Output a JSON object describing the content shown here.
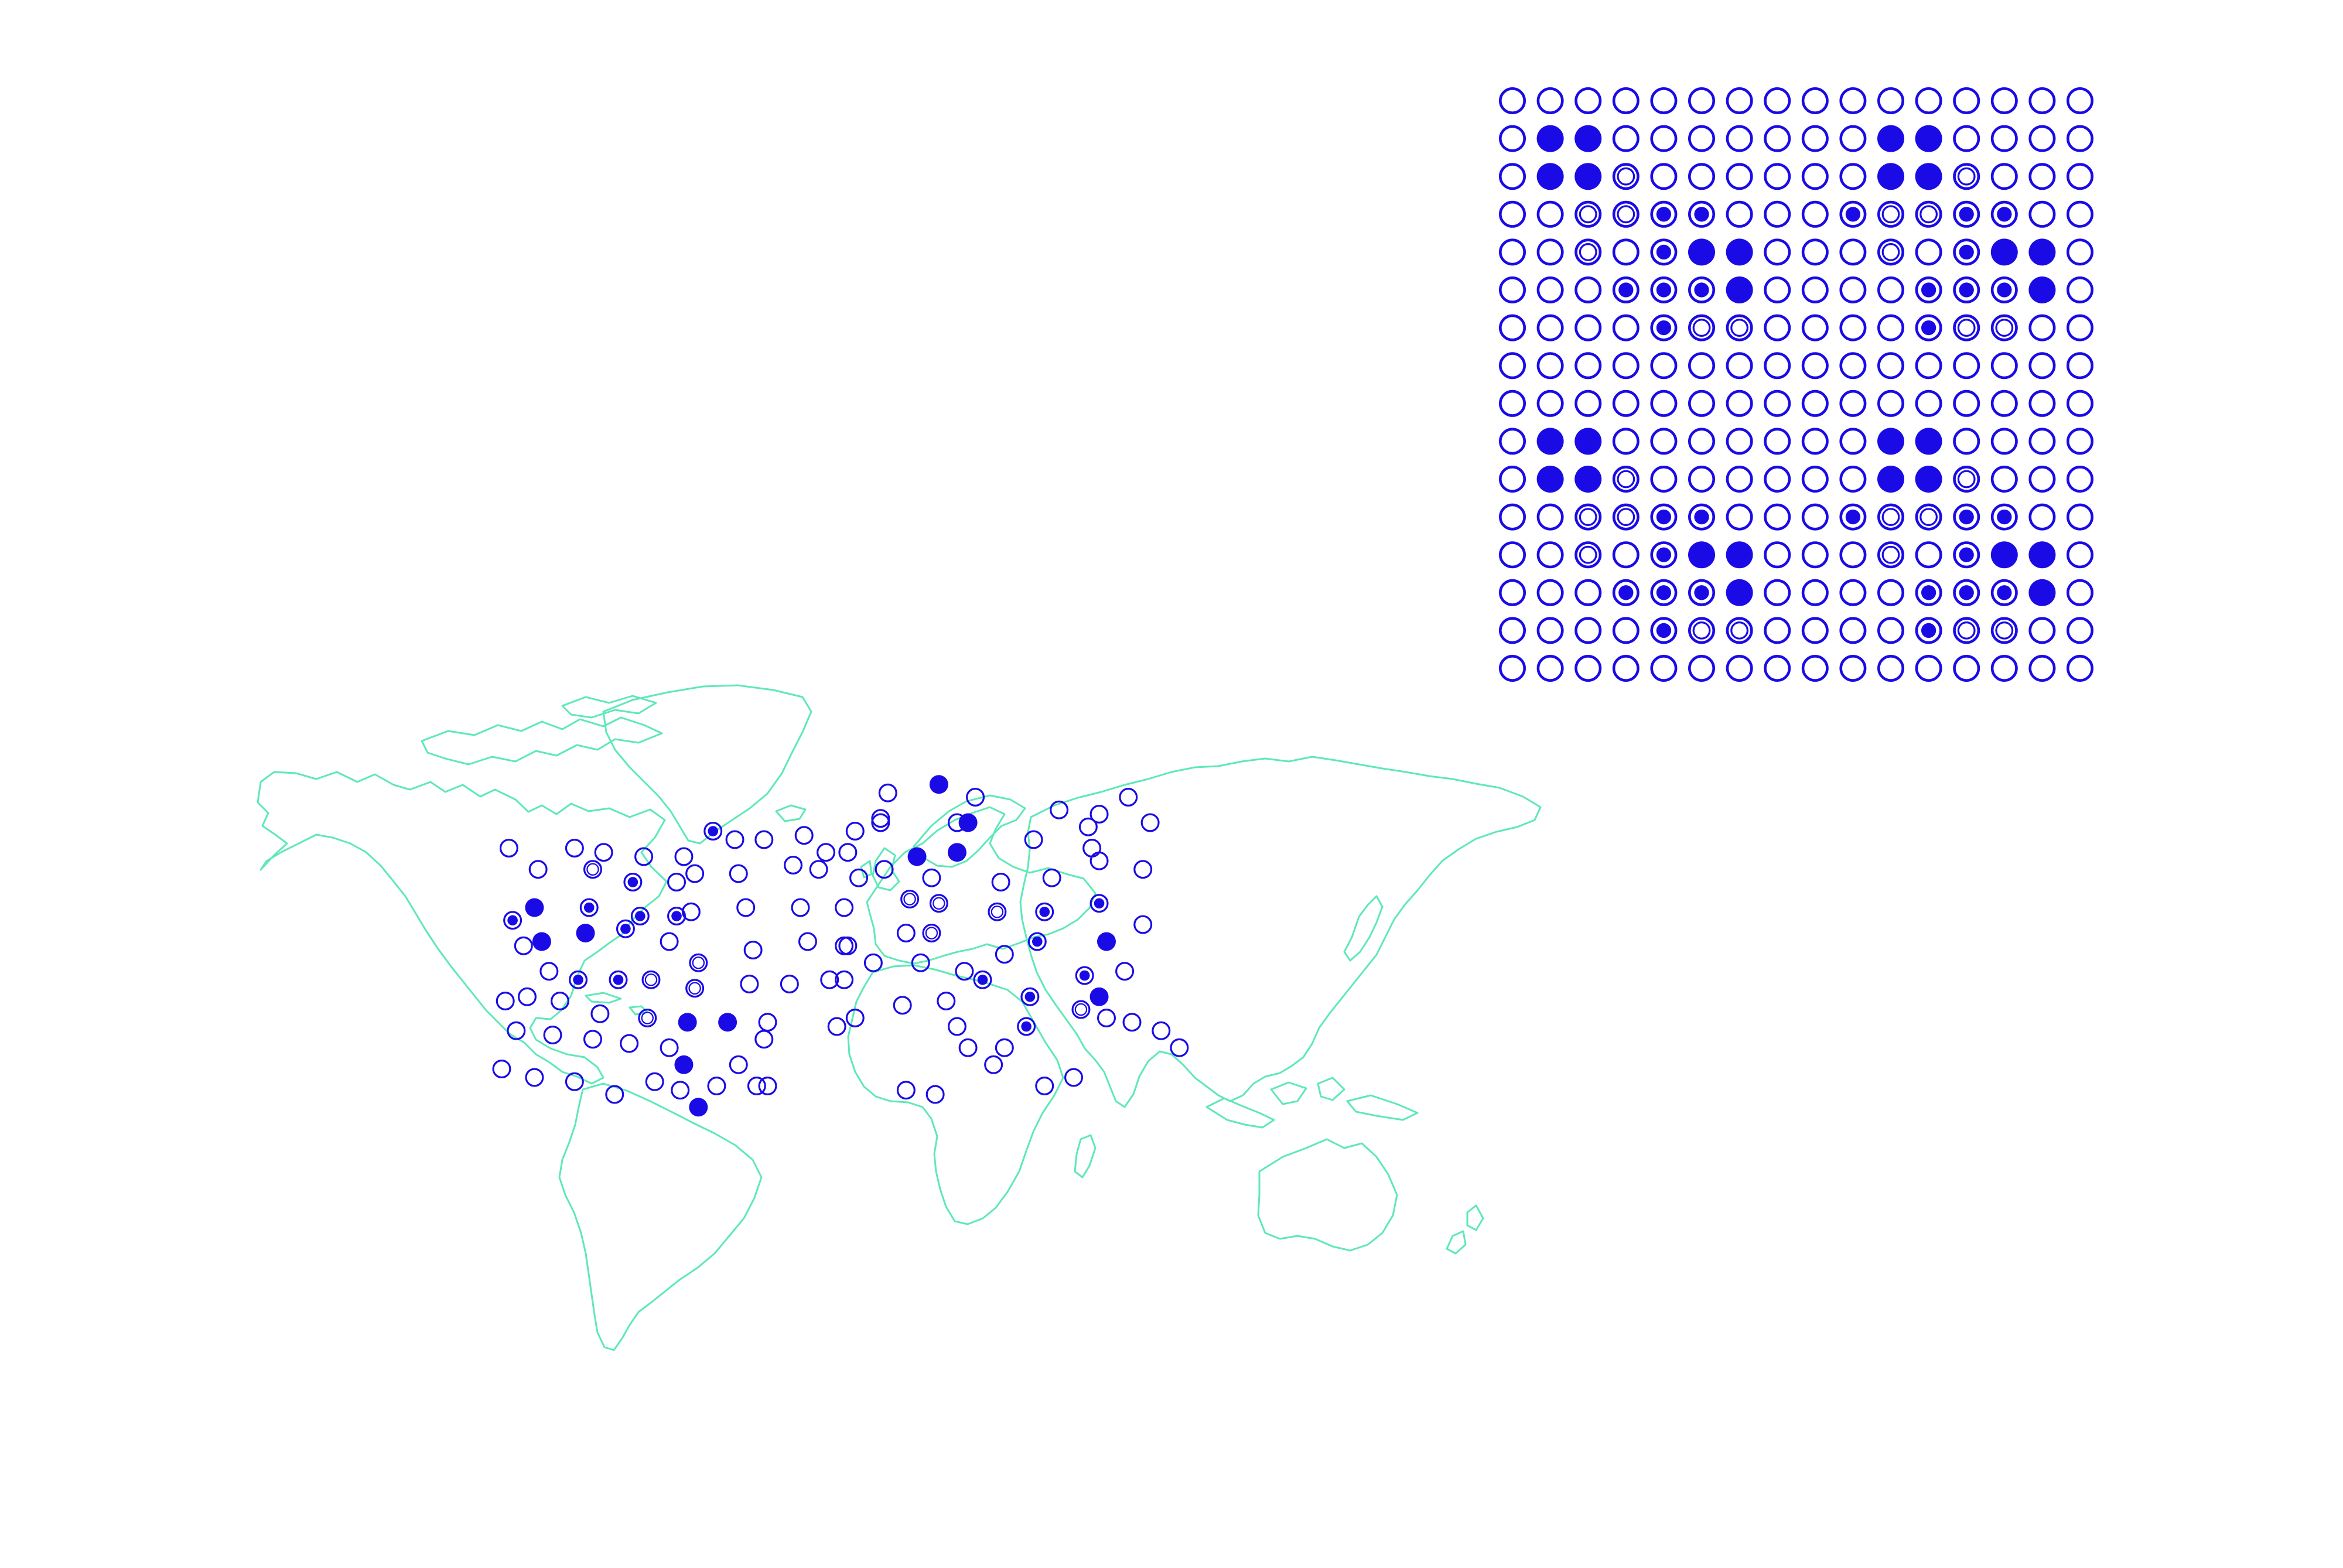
{
  "colors": {
    "background": "#ffffff",
    "marker": "#1a0be6",
    "coastline": "#5ee8b8"
  },
  "legend_grid": {
    "rows": [
      "0000000000000000",
      "0330000000330000",
      "0331000000331000",
      "0011220002112200",
      "0010233000102330",
      "0002223000022230",
      "0000211000021100",
      "0000000000000000",
      "0000000000000000",
      "0330000000330000",
      "0331000000331000",
      "0011220002112200",
      "0010233000102330",
      "0002223000022230",
      "0000211000021100",
      "0000000000000000"
    ],
    "marker_types": [
      "hollow",
      "ring-in-ring",
      "dot-in-ring",
      "filled"
    ]
  },
  "map_markers": [
    [
      "hollow",
      [
        -105,
        52
      ]
    ],
    [
      "hollow",
      [
        -97,
        47
      ]
    ],
    [
      "hollow",
      [
        -87,
        52
      ]
    ],
    [
      "hollow",
      [
        -79,
        51
      ]
    ],
    [
      "hollow",
      [
        -68,
        50
      ]
    ],
    [
      "hollow",
      [
        -57,
        50
      ]
    ],
    [
      "hollow",
      [
        -43,
        54
      ]
    ],
    [
      "ring-in-ring",
      [
        -82,
        47
      ]
    ],
    [
      "dot-in-ring",
      [
        -71,
        44
      ]
    ],
    [
      "hollow",
      [
        -59,
        44
      ]
    ],
    [
      "dot-in-ring",
      [
        -104,
        35
      ]
    ],
    [
      "filled",
      [
        -98,
        38
      ]
    ],
    [
      "dot-in-ring",
      [
        -83,
        38
      ]
    ],
    [
      "dot-in-ring",
      [
        -69,
        36
      ]
    ],
    [
      "dot-in-ring",
      [
        -59,
        36
      ]
    ],
    [
      "hollow",
      [
        -101,
        29
      ]
    ],
    [
      "filled",
      [
        -96,
        30
      ]
    ],
    [
      "filled",
      [
        -84,
        32
      ]
    ],
    [
      "dot-in-ring",
      [
        -73,
        33
      ]
    ],
    [
      "hollow",
      [
        -61,
        30
      ]
    ],
    [
      "ring-in-ring",
      [
        -53,
        25
      ]
    ],
    [
      "hollow",
      [
        -94,
        23
      ]
    ],
    [
      "dot-in-ring",
      [
        -86,
        21
      ]
    ],
    [
      "dot-in-ring",
      [
        -75,
        21
      ]
    ],
    [
      "ring-in-ring",
      [
        -66,
        21
      ]
    ],
    [
      "ring-in-ring",
      [
        -54,
        19
      ]
    ],
    [
      "hollow",
      [
        -106,
        16
      ]
    ],
    [
      "hollow",
      [
        -100,
        17
      ]
    ],
    [
      "hollow",
      [
        -91,
        16
      ]
    ],
    [
      "hollow",
      [
        -80,
        13
      ]
    ],
    [
      "ring-in-ring",
      [
        -67,
        12
      ]
    ],
    [
      "filled",
      [
        -56,
        11
      ]
    ],
    [
      "filled",
      [
        -45,
        11
      ]
    ],
    [
      "hollow",
      [
        -103,
        9
      ]
    ],
    [
      "hollow",
      [
        -93,
        8
      ]
    ],
    [
      "hollow",
      [
        -82,
        7
      ]
    ],
    [
      "hollow",
      [
        -72,
        6
      ]
    ],
    [
      "hollow",
      [
        -61,
        5
      ]
    ],
    [
      "filled",
      [
        -57,
        1
      ]
    ],
    [
      "hollow",
      [
        -35,
        7
      ]
    ],
    [
      "hollow",
      [
        -107,
        0
      ]
    ],
    [
      "hollow",
      [
        -98,
        -2
      ]
    ],
    [
      "hollow",
      [
        -87,
        -3
      ]
    ],
    [
      "hollow",
      [
        -76,
        -6
      ]
    ],
    [
      "hollow",
      [
        -65,
        -3
      ]
    ],
    [
      "hollow",
      [
        -58,
        -5
      ]
    ],
    [
      "filled",
      [
        -53,
        -9
      ]
    ],
    [
      "hollow",
      [
        -48,
        -4
      ]
    ],
    [
      "hollow",
      [
        -37,
        -4
      ]
    ],
    [
      "dot-in-ring",
      [
        -49,
        56
      ]
    ],
    [
      "hollow",
      [
        -35,
        54
      ]
    ],
    [
      "hollow",
      [
        -24,
        55
      ]
    ],
    [
      "hollow",
      [
        -10,
        56
      ]
    ],
    [
      "hollow",
      [
        -18,
        51
      ]
    ],
    [
      "hollow",
      [
        -12,
        51
      ]
    ],
    [
      "hollow",
      [
        -54,
        46
      ]
    ],
    [
      "hollow",
      [
        -42,
        46
      ]
    ],
    [
      "hollow",
      [
        -27,
        48
      ]
    ],
    [
      "hollow",
      [
        -20,
        47
      ]
    ],
    [
      "hollow",
      [
        -9,
        45
      ]
    ],
    [
      "hollow",
      [
        -55,
        37
      ]
    ],
    [
      "hollow",
      [
        -40,
        38
      ]
    ],
    [
      "hollow",
      [
        -25,
        38
      ]
    ],
    [
      "hollow",
      [
        -13,
        38
      ]
    ],
    [
      "hollow",
      [
        -38,
        28
      ]
    ],
    [
      "hollow",
      [
        -23,
        30
      ]
    ],
    [
      "hollow",
      [
        -13,
        29
      ]
    ],
    [
      "hollow",
      [
        -39,
        20
      ]
    ],
    [
      "hollow",
      [
        -28,
        20
      ]
    ],
    [
      "hollow",
      [
        -17,
        21
      ]
    ],
    [
      "hollow",
      [
        -34,
        11
      ]
    ],
    [
      "hollow",
      [
        -15,
        10
      ]
    ],
    [
      "hollow",
      [
        -42,
        1
      ]
    ],
    [
      "hollow",
      [
        -34,
        -4
      ]
    ],
    [
      "hollow",
      [
        -1,
        65
      ]
    ],
    [
      "filled",
      [
        13,
        67
      ]
    ],
    [
      "hollow",
      [
        23,
        64
      ]
    ],
    [
      "hollow",
      [
        -3,
        58
      ]
    ],
    [
      "filled",
      [
        21,
        58
      ]
    ],
    [
      "hollow",
      [
        39,
        54
      ]
    ],
    [
      "hollow",
      [
        55,
        52
      ]
    ],
    [
      "hollow",
      [
        46,
        61
      ]
    ],
    [
      "hollow",
      [
        57,
        60
      ]
    ],
    [
      "hollow",
      [
        18,
        58
      ]
    ],
    [
      "filled",
      [
        7,
        50
      ]
    ],
    [
      "filled",
      [
        18,
        51
      ]
    ],
    [
      "hollow",
      [
        11,
        45
      ]
    ],
    [
      "hollow",
      [
        30,
        44
      ]
    ],
    [
      "hollow",
      [
        44,
        45
      ]
    ],
    [
      "hollow",
      [
        57,
        49
      ]
    ],
    [
      "hollow",
      [
        -2,
        47
      ]
    ],
    [
      "ring-in-ring",
      [
        13,
        39
      ]
    ],
    [
      "ring-in-ring",
      [
        29,
        37
      ]
    ],
    [
      "dot-in-ring",
      [
        42,
        37
      ]
    ],
    [
      "dot-in-ring",
      [
        57,
        39
      ]
    ],
    [
      "ring-in-ring",
      [
        11,
        32
      ]
    ],
    [
      "hollow",
      [
        4,
        32
      ]
    ],
    [
      "dot-in-ring",
      [
        40,
        30
      ]
    ],
    [
      "filled",
      [
        59,
        30
      ]
    ],
    [
      "hollow",
      [
        -12,
        29
      ]
    ],
    [
      "hollow",
      [
        -5,
        25
      ]
    ],
    [
      "hollow",
      [
        8,
        25
      ]
    ],
    [
      "hollow",
      [
        20,
        23
      ]
    ],
    [
      "dot-in-ring",
      [
        25,
        21
      ]
    ],
    [
      "hollow",
      [
        31,
        27
      ]
    ],
    [
      "dot-in-ring",
      [
        38,
        17
      ]
    ],
    [
      "dot-in-ring",
      [
        53,
        22
      ]
    ],
    [
      "filled",
      [
        57,
        17
      ]
    ],
    [
      "hollow",
      [
        15,
        16
      ]
    ],
    [
      "hollow",
      [
        -13,
        21
      ]
    ],
    [
      "hollow",
      [
        -10,
        12
      ]
    ],
    [
      "hollow",
      [
        3,
        15
      ]
    ],
    [
      "hollow",
      [
        18,
        10
      ]
    ],
    [
      "dot-in-ring",
      [
        37,
        10
      ]
    ],
    [
      "ring-in-ring",
      [
        52,
        14
      ]
    ],
    [
      "hollow",
      [
        21,
        5
      ]
    ],
    [
      "hollow",
      [
        31,
        5
      ]
    ],
    [
      "hollow",
      [
        59,
        12
      ]
    ],
    [
      "hollow",
      [
        66,
        11
      ]
    ],
    [
      "hollow",
      [
        74,
        9
      ]
    ],
    [
      "hollow",
      [
        79,
        5
      ]
    ],
    [
      "hollow",
      [
        4,
        -5
      ]
    ],
    [
      "hollow",
      [
        12,
        -6
      ]
    ],
    [
      "hollow",
      [
        28,
        1
      ]
    ],
    [
      "hollow",
      [
        42,
        -4
      ]
    ],
    [
      "hollow",
      [
        50,
        -2
      ]
    ],
    [
      "hollow",
      [
        64,
        23
      ]
    ],
    [
      "hollow",
      [
        69,
        34
      ]
    ],
    [
      "hollow",
      [
        69,
        47
      ]
    ],
    [
      "hollow",
      [
        65,
        64
      ]
    ],
    [
      "hollow",
      [
        71,
        58
      ]
    ],
    [
      "hollow",
      [
        -3,
        59
      ]
    ],
    [
      "hollow",
      [
        54,
        57
      ]
    ],
    [
      "ring-in-ring",
      [
        5,
        40
      ]
    ]
  ]
}
